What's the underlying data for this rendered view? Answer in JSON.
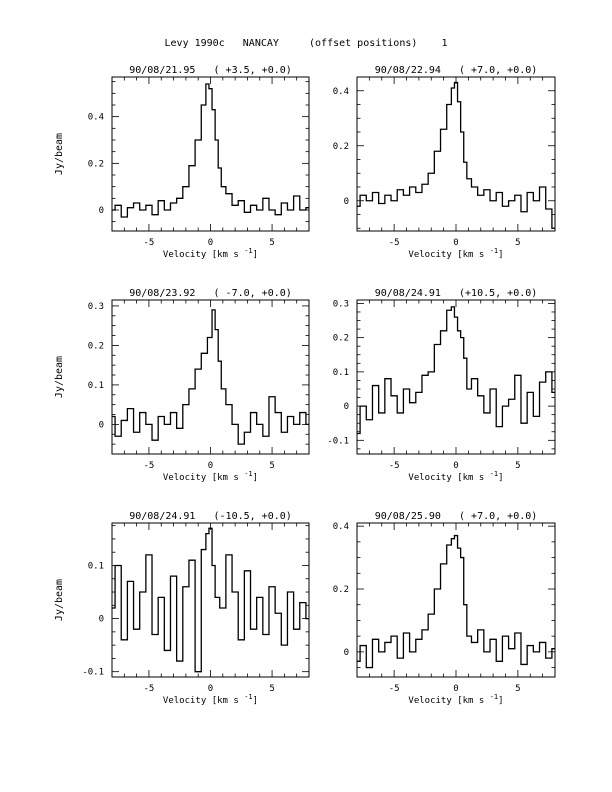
{
  "header": {
    "title": "Levy 1990c   NANCAY     (offset positions)    1"
  },
  "chart_data": [
    {
      "type": "line",
      "title": "90/08/21.95   ( +3.5, +0.0)",
      "xlabel": "Velocity [km s",
      "xlabel_sup": "-1",
      "xlabel_close": "]",
      "ylabel": "Jy/beam",
      "xlim": [
        -8,
        8
      ],
      "ylim": [
        -0.09,
        0.57
      ],
      "xticks": [
        -5,
        0,
        5
      ],
      "yticks": [
        0,
        0.2,
        0.4
      ],
      "x": [
        -8.0,
        -7.5,
        -7.0,
        -6.5,
        -6.0,
        -5.5,
        -5.0,
        -4.5,
        -4.0,
        -3.5,
        -3.0,
        -2.5,
        -2.0,
        -1.5,
        -1.0,
        -0.5,
        -0.25,
        0.0,
        0.25,
        0.5,
        0.75,
        1.0,
        1.5,
        2.0,
        2.5,
        3.0,
        3.5,
        4.0,
        4.5,
        5.0,
        5.5,
        6.0,
        6.5,
        7.0,
        7.5,
        8.0
      ],
      "y": [
        0.0,
        0.02,
        -0.03,
        0.01,
        0.03,
        0.0,
        0.02,
        -0.02,
        0.04,
        0.0,
        0.03,
        0.05,
        0.1,
        0.19,
        0.3,
        0.45,
        0.54,
        0.52,
        0.43,
        0.3,
        0.18,
        0.1,
        0.07,
        0.02,
        0.04,
        -0.01,
        0.02,
        0.0,
        0.05,
        0.0,
        -0.02,
        0.03,
        0.0,
        0.06,
        0.0,
        0.01
      ]
    },
    {
      "type": "line",
      "title": "90/08/22.94   ( +7.0, +0.0)",
      "xlabel": "Velocity [km s",
      "xlabel_sup": "-1",
      "xlabel_close": "]",
      "ylabel": "",
      "xlim": [
        -8,
        8
      ],
      "ylim": [
        -0.11,
        0.45
      ],
      "xticks": [
        -5,
        0,
        5
      ],
      "yticks": [
        0,
        0.2,
        0.4
      ],
      "x": [
        -8.0,
        -7.5,
        -7.0,
        -6.5,
        -6.0,
        -5.5,
        -5.0,
        -4.5,
        -4.0,
        -3.5,
        -3.0,
        -2.5,
        -2.0,
        -1.5,
        -1.0,
        -0.5,
        -0.25,
        0.0,
        0.25,
        0.5,
        0.75,
        1.0,
        1.5,
        2.0,
        2.5,
        3.0,
        3.5,
        4.0,
        4.5,
        5.0,
        5.5,
        6.0,
        6.5,
        7.0,
        7.5,
        8.0
      ],
      "y": [
        -0.02,
        0.02,
        0.0,
        0.03,
        -0.01,
        0.02,
        0.0,
        0.04,
        0.02,
        0.05,
        0.03,
        0.06,
        0.1,
        0.18,
        0.26,
        0.35,
        0.41,
        0.43,
        0.36,
        0.25,
        0.14,
        0.08,
        0.05,
        0.02,
        0.04,
        0.0,
        0.03,
        -0.02,
        0.0,
        0.02,
        -0.04,
        0.03,
        0.0,
        0.05,
        -0.03,
        -0.1
      ]
    },
    {
      "type": "line",
      "title": "90/08/23.92   ( -7.0, +0.0)",
      "xlabel": "Velocity [km s",
      "xlabel_sup": "-1",
      "xlabel_close": "]",
      "ylabel": "Jy/beam",
      "xlim": [
        -8,
        8
      ],
      "ylim": [
        -0.075,
        0.315
      ],
      "xticks": [
        -5,
        0,
        5
      ],
      "yticks": [
        0,
        0.1,
        0.2,
        0.3
      ],
      "x": [
        -8.0,
        -7.5,
        -7.0,
        -6.5,
        -6.0,
        -5.5,
        -5.0,
        -4.5,
        -4.0,
        -3.5,
        -3.0,
        -2.5,
        -2.0,
        -1.5,
        -1.0,
        -0.5,
        0.0,
        0.25,
        0.5,
        0.75,
        1.0,
        1.5,
        2.0,
        2.5,
        3.0,
        3.5,
        4.0,
        4.5,
        5.0,
        5.5,
        6.0,
        6.5,
        7.0,
        7.5,
        8.0
      ],
      "y": [
        0.02,
        -0.03,
        0.01,
        0.04,
        -0.02,
        0.03,
        0.0,
        -0.04,
        0.02,
        0.0,
        0.03,
        -0.01,
        0.05,
        0.09,
        0.14,
        0.18,
        0.22,
        0.29,
        0.24,
        0.16,
        0.09,
        0.05,
        0.0,
        -0.05,
        -0.02,
        0.03,
        0.0,
        -0.03,
        0.07,
        0.03,
        -0.02,
        0.02,
        0.0,
        0.03,
        0.0
      ]
    },
    {
      "type": "line",
      "title": "90/08/24.91   (+10.5, +0.0)",
      "xlabel": "Velocity [km s",
      "xlabel_sup": "-1",
      "xlabel_close": "]",
      "ylabel": "",
      "xlim": [
        -8,
        8
      ],
      "ylim": [
        -0.14,
        0.31
      ],
      "xticks": [
        -5,
        0,
        5
      ],
      "yticks": [
        -0.1,
        0,
        0.1,
        0.2,
        0.3
      ],
      "x": [
        -8.0,
        -7.5,
        -7.0,
        -6.5,
        -6.0,
        -5.5,
        -5.0,
        -4.5,
        -4.0,
        -3.5,
        -3.0,
        -2.5,
        -2.0,
        -1.5,
        -1.0,
        -0.5,
        -0.25,
        0.0,
        0.25,
        0.5,
        0.75,
        1.0,
        1.5,
        2.0,
        2.5,
        3.0,
        3.5,
        4.0,
        4.5,
        5.0,
        5.5,
        6.0,
        6.5,
        7.0,
        7.5,
        8.0
      ],
      "y": [
        -0.08,
        0.0,
        -0.04,
        0.06,
        -0.02,
        0.08,
        0.03,
        -0.02,
        0.05,
        0.01,
        0.04,
        0.09,
        0.1,
        0.18,
        0.22,
        0.28,
        0.29,
        0.26,
        0.22,
        0.2,
        0.14,
        0.05,
        0.08,
        0.03,
        -0.02,
        0.05,
        -0.06,
        0.0,
        0.02,
        0.09,
        -0.05,
        0.04,
        -0.03,
        0.07,
        0.1,
        0.04
      ]
    },
    {
      "type": "line",
      "title": "90/08/24.91   (-10.5, +0.0)",
      "xlabel": "Velocity [km s",
      "xlabel_sup": "-1",
      "xlabel_close": "]",
      "ylabel": "Jy/beam",
      "xlim": [
        -8,
        8
      ],
      "ylim": [
        -0.11,
        0.18
      ],
      "xticks": [
        -5,
        0,
        5
      ],
      "yticks": [
        -0.1,
        0,
        0.1
      ],
      "x": [
        -8.0,
        -7.5,
        -7.0,
        -6.5,
        -6.0,
        -5.5,
        -5.0,
        -4.5,
        -4.0,
        -3.5,
        -3.0,
        -2.5,
        -2.0,
        -1.5,
        -1.0,
        -0.5,
        -0.25,
        0.0,
        0.25,
        0.5,
        1.0,
        1.5,
        2.0,
        2.5,
        3.0,
        3.5,
        4.0,
        4.5,
        5.0,
        5.5,
        6.0,
        6.5,
        7.0,
        7.5,
        8.0
      ],
      "y": [
        0.02,
        0.1,
        -0.04,
        0.07,
        -0.02,
        0.05,
        0.12,
        -0.03,
        0.04,
        -0.06,
        0.08,
        -0.08,
        0.06,
        0.11,
        -0.1,
        0.13,
        0.16,
        0.17,
        0.1,
        0.04,
        0.02,
        0.12,
        0.05,
        -0.04,
        0.09,
        -0.02,
        0.04,
        -0.03,
        0.06,
        0.01,
        -0.05,
        0.05,
        -0.02,
        0.03,
        0.0
      ]
    },
    {
      "type": "line",
      "title": "90/08/25.90   ( +7.0, +0.0)",
      "xlabel": "Velocity [km s",
      "xlabel_sup": "-1",
      "xlabel_close": "]",
      "ylabel": "",
      "xlim": [
        -8,
        8
      ],
      "ylim": [
        -0.08,
        0.41
      ],
      "xticks": [
        -5,
        0,
        5
      ],
      "yticks": [
        0,
        0.2,
        0.4
      ],
      "x": [
        -8.0,
        -7.5,
        -7.0,
        -6.5,
        -6.0,
        -5.5,
        -5.0,
        -4.5,
        -4.0,
        -3.5,
        -3.0,
        -2.5,
        -2.0,
        -1.5,
        -1.0,
        -0.5,
        -0.25,
        0.0,
        0.25,
        0.5,
        0.75,
        1.0,
        1.5,
        2.0,
        2.5,
        3.0,
        3.5,
        4.0,
        4.5,
        5.0,
        5.5,
        6.0,
        6.5,
        7.0,
        7.5,
        8.0
      ],
      "y": [
        -0.03,
        0.02,
        -0.05,
        0.04,
        0.0,
        0.03,
        0.05,
        -0.02,
        0.06,
        0.0,
        0.04,
        0.07,
        0.12,
        0.2,
        0.28,
        0.34,
        0.36,
        0.37,
        0.33,
        0.3,
        0.15,
        0.05,
        0.03,
        0.07,
        0.0,
        0.04,
        -0.03,
        0.05,
        0.01,
        0.06,
        -0.04,
        0.02,
        0.0,
        0.03,
        -0.02,
        0.01
      ]
    }
  ]
}
